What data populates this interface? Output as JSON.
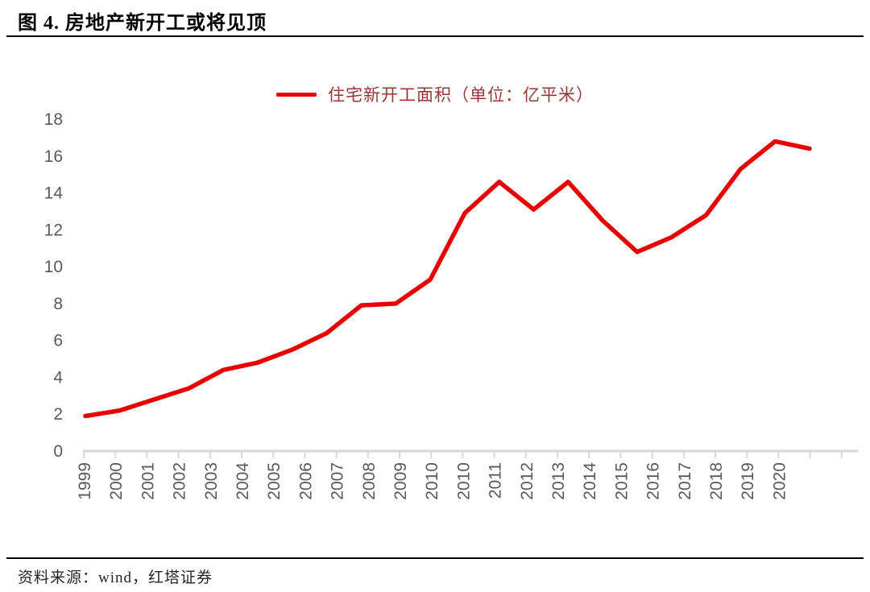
{
  "figure": {
    "title": "图 4. 房地产新开工或将见顶"
  },
  "legend": {
    "label": "住宅新开工面积（单位：亿平米）"
  },
  "source": {
    "text": "资料来源：wind，红塔证券"
  },
  "colors": {
    "series_line": "#e60000",
    "legend_text": "#953735",
    "axis_text": "#595959",
    "axis_line": "#d9d9d9",
    "divider": "#000000",
    "title_text": "#000000"
  },
  "chart_data": {
    "type": "line",
    "title": "图 4. 房地产新开工或将见顶",
    "legend_entries": [
      "住宅新开工面积（单位：亿平米）"
    ],
    "legend_position": "top-center",
    "grid": "off",
    "ylim": [
      0,
      18
    ],
    "y_ticks": [
      0,
      2,
      4,
      6,
      8,
      10,
      12,
      14,
      16,
      18
    ],
    "x_tick_labels_as_shown": [
      "1999",
      "2000",
      "2001",
      "2002",
      "2003",
      "2004",
      "2005",
      "2006",
      "2007",
      "2008",
      "2009",
      "2010",
      "2010",
      "2011",
      "2012",
      "2013",
      "2014",
      "2015",
      "2016",
      "2017",
      "2018",
      "2019",
      "2020"
    ],
    "years": [
      1999,
      2000,
      2001,
      2002,
      2003,
      2004,
      2005,
      2006,
      2007,
      2008,
      2009,
      2010,
      2011,
      2012,
      2013,
      2014,
      2015,
      2016,
      2017,
      2018,
      2019,
      2020
    ],
    "series": [
      {
        "name": "住宅新开工面积（单位：亿平米）",
        "values": [
          1.9,
          2.2,
          2.8,
          3.4,
          4.4,
          4.8,
          5.5,
          6.4,
          7.9,
          8.0,
          9.3,
          12.9,
          14.6,
          13.1,
          14.6,
          12.5,
          10.8,
          11.6,
          12.8,
          15.3,
          16.8,
          16.4
        ]
      }
    ]
  }
}
